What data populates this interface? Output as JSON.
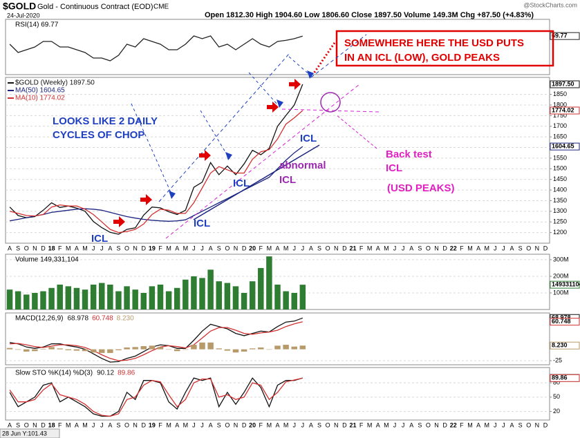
{
  "header": {
    "symbol": "$GOLD",
    "name": "Gold - Continuous Contract (EOD)",
    "exchange": "CME",
    "date": "24-Jul-2020",
    "quote": "Open 1812.30 High 1904.60 Low 1806.60 Close 1897.50 Volume 149.3M Chg +87.50 (+4.83%)",
    "source": "@StockCharts.com",
    "crosshair": "28 Jun Y:101.43"
  },
  "annotations": [
    "SOMEWHERE HERE THE USD PUTS",
    "IN AN ICL (LOW), GOLD PEAKS",
    "LOOKS LIKE 2 DAILY",
    "CYCLES OF CHOP",
    "ICL",
    "ICL",
    "ICL",
    "ICL",
    "abnormal",
    "ICL",
    "Back test",
    "ICL",
    "(USD PEAKS)"
  ],
  "chart_data": [
    {
      "type": "line",
      "title": "RSI(14) 69.77",
      "ylim": [
        0,
        100
      ],
      "color": "#222222",
      "end_label": "69.77",
      "values": [
        55,
        40,
        45,
        50,
        60,
        60,
        50,
        50,
        45,
        40,
        30,
        30,
        25,
        35,
        55,
        50,
        65,
        60,
        55,
        45,
        45,
        55,
        70,
        65,
        70,
        50,
        55,
        45,
        55,
        65,
        55,
        50,
        60,
        62,
        65,
        69.77
      ]
    },
    {
      "type": "line",
      "ylim": [
        1150,
        1930
      ],
      "yticks": [
        1200,
        1250,
        1300,
        1350,
        1400,
        1450,
        1500,
        1550,
        1600,
        1650,
        1700,
        1750,
        1800,
        1850
      ],
      "grid": true,
      "categories": [
        "A",
        "S",
        "O",
        "N",
        "D",
        "18",
        "F",
        "M",
        "A",
        "M",
        "J",
        "J",
        "A",
        "S",
        "O",
        "N",
        "D",
        "19",
        "F",
        "M",
        "A",
        "M",
        "J",
        "J",
        "A",
        "S",
        "O",
        "N",
        "D",
        "20",
        "F",
        "M",
        "A",
        "M",
        "J",
        "J",
        "A",
        "S",
        "O",
        "N",
        "D",
        "21",
        "F",
        "M",
        "A",
        "M",
        "J",
        "J",
        "A",
        "S",
        "O",
        "N",
        "D",
        "22",
        "F",
        "M",
        "A",
        "M",
        "J",
        "J",
        "A",
        "S",
        "O",
        "N",
        "D"
      ],
      "series": [
        {
          "name": "$GOLD (Weekly) 1897.50",
          "color": "#111111",
          "end_label": "1897.50",
          "values": [
            1320,
            1280,
            1270,
            1275,
            1305,
            1340,
            1318,
            1325,
            1315,
            1300,
            1252,
            1223,
            1201,
            1192,
            1215,
            1222,
            1282,
            1320,
            1316,
            1298,
            1285,
            1305,
            1413,
            1437,
            1529,
            1472,
            1513,
            1472,
            1523,
            1587,
            1566,
            1596,
            1700,
            1751,
            1800,
            1897.5,
            null,
            null,
            null,
            null,
            null,
            null,
            null,
            null,
            null,
            null,
            null,
            null,
            null,
            null,
            null,
            null,
            null,
            null,
            null,
            null,
            null,
            null,
            null,
            null,
            null,
            null,
            null,
            null,
            null
          ]
        },
        {
          "name": "MA(50) 1604.65",
          "color": "#1a237e",
          "end_label": "1604.65",
          "values": [
            1255,
            1262,
            1270,
            1278,
            1285,
            1295,
            1300,
            1305,
            1310,
            1312,
            1310,
            1305,
            1295,
            1285,
            1275,
            1268,
            1262,
            1258,
            1255,
            1253,
            1255,
            1260,
            1280,
            1300,
            1320,
            1340,
            1360,
            1380,
            1400,
            1420,
            1440,
            1460,
            1500,
            1540,
            1575,
            1604.65,
            null,
            null,
            null,
            null,
            null,
            null,
            null,
            null,
            null,
            null,
            null,
            null,
            null,
            null,
            null,
            null,
            null,
            null,
            null,
            null,
            null,
            null,
            null,
            null,
            null,
            null,
            null,
            null,
            null
          ]
        },
        {
          "name": "MA(10) 1774.02",
          "color": "#d32f2f",
          "end_label": "1774.02",
          "values": [
            1300,
            1290,
            1280,
            1278,
            1285,
            1320,
            1330,
            1325,
            1325,
            1310,
            1285,
            1250,
            1215,
            1200,
            1205,
            1215,
            1240,
            1285,
            1310,
            1305,
            1290,
            1290,
            1340,
            1410,
            1480,
            1510,
            1495,
            1480,
            1480,
            1545,
            1580,
            1590,
            1640,
            1710,
            1740,
            1774.02,
            null,
            null,
            null,
            null,
            null,
            null,
            null,
            null,
            null,
            null,
            null,
            null,
            null,
            null,
            null,
            null,
            null,
            null,
            null,
            null,
            null,
            null,
            null,
            null,
            null,
            null,
            null,
            null,
            null
          ]
        }
      ]
    },
    {
      "type": "bar",
      "title": "Volume 149,331,104",
      "ylim": [
        0,
        333
      ],
      "color": "#2e7d32",
      "end_label": "149331104",
      "grid": true,
      "yticks": [
        {
          "value": 100,
          "label": "100M"
        },
        {
          "value": 200,
          "label": "200M"
        },
        {
          "value": 300,
          "label": "300M"
        }
      ],
      "values": [
        120,
        110,
        90,
        100,
        110,
        130,
        150,
        140,
        130,
        120,
        150,
        160,
        150,
        110,
        140,
        120,
        100,
        140,
        150,
        110,
        130,
        180,
        200,
        190,
        240,
        170,
        160,
        140,
        100,
        170,
        250,
        320,
        150,
        110,
        100,
        149.331104
      ]
    },
    {
      "type": "line",
      "title": "MACD(12,26,9)",
      "ylim": [
        -34,
        80
      ],
      "yticks": [
        -25
      ],
      "grid": true,
      "series": [
        {
          "name": "68.978",
          "color": "#111111",
          "values": [
            15,
            12,
            5,
            2,
            5,
            12,
            12,
            8,
            5,
            0,
            -10,
            -20,
            -28,
            -27,
            -20,
            -15,
            -5,
            5,
            10,
            8,
            2,
            2,
            20,
            40,
            55,
            50,
            45,
            35,
            30,
            35,
            40,
            38,
            50,
            60,
            62,
            68.978
          ]
        },
        {
          "name": "60.748",
          "color": "#d32f2f",
          "values": [
            12,
            13,
            10,
            6,
            4,
            7,
            10,
            10,
            8,
            4,
            -3,
            -12,
            -20,
            -25,
            -24,
            -20,
            -12,
            -3,
            5,
            8,
            6,
            3,
            10,
            25,
            40,
            48,
            48,
            42,
            35,
            33,
            36,
            38,
            42,
            50,
            56,
            60.748
          ]
        },
        {
          "name": "8.230",
          "color": "#b89a6a",
          "type": "bar",
          "values": [
            3,
            -1,
            -5,
            -4,
            1,
            5,
            2,
            -2,
            -3,
            -4,
            -7,
            -8,
            -8,
            -2,
            4,
            5,
            7,
            8,
            5,
            0,
            -4,
            -1,
            10,
            15,
            15,
            2,
            -3,
            -7,
            -5,
            2,
            4,
            0,
            8,
            10,
            6,
            8.23
          ]
        }
      ]
    },
    {
      "type": "line",
      "title": "Slow STO %K(14) %D(3)",
      "ylim": [
        2,
        112
      ],
      "yticks": [
        20,
        50,
        80
      ],
      "grid": true,
      "categories": [
        "A",
        "S",
        "O",
        "N",
        "D",
        "18",
        "F",
        "M",
        "A",
        "M",
        "J",
        "J",
        "A",
        "S",
        "O",
        "N",
        "D",
        "19",
        "F",
        "M",
        "A",
        "M",
        "J",
        "J",
        "A",
        "S",
        "O",
        "N",
        "D",
        "20",
        "F",
        "M",
        "A",
        "M",
        "J",
        "J",
        "A",
        "S",
        "O",
        "N",
        "D",
        "21",
        "F",
        "M",
        "A",
        "M",
        "J",
        "J",
        "A",
        "S",
        "O",
        "N",
        "D",
        "22",
        "F",
        "M",
        "A",
        "M",
        "J",
        "J",
        "A",
        "S",
        "O",
        "N",
        "D"
      ],
      "series": [
        {
          "name": "90.12",
          "color": "#111111",
          "values": [
            60,
            30,
            40,
            50,
            75,
            80,
            40,
            50,
            40,
            30,
            15,
            10,
            10,
            20,
            60,
            45,
            85,
            85,
            80,
            40,
            25,
            60,
            90,
            85,
            90,
            30,
            60,
            35,
            60,
            90,
            70,
            30,
            75,
            85,
            85,
            90.12,
            null,
            null,
            null,
            null,
            null,
            null,
            null,
            null,
            null,
            null,
            null,
            null,
            null,
            null,
            null,
            null,
            null,
            null,
            null,
            null,
            null,
            null,
            null,
            null,
            null,
            null,
            null,
            null,
            null
          ]
        },
        {
          "name": "89.86",
          "color": "#d32f2f",
          "values": [
            65,
            40,
            40,
            45,
            65,
            78,
            55,
            50,
            45,
            35,
            20,
            12,
            10,
            15,
            45,
            50,
            75,
            85,
            82,
            55,
            30,
            45,
            80,
            88,
            88,
            50,
            55,
            45,
            50,
            80,
            75,
            45,
            60,
            82,
            86,
            89.86,
            null,
            null,
            null,
            null,
            null,
            null,
            null,
            null,
            null,
            null,
            null,
            null,
            null,
            null,
            null,
            null,
            null,
            null,
            null,
            null,
            null,
            null,
            null,
            null,
            null,
            null,
            null,
            null,
            null
          ]
        }
      ]
    }
  ]
}
